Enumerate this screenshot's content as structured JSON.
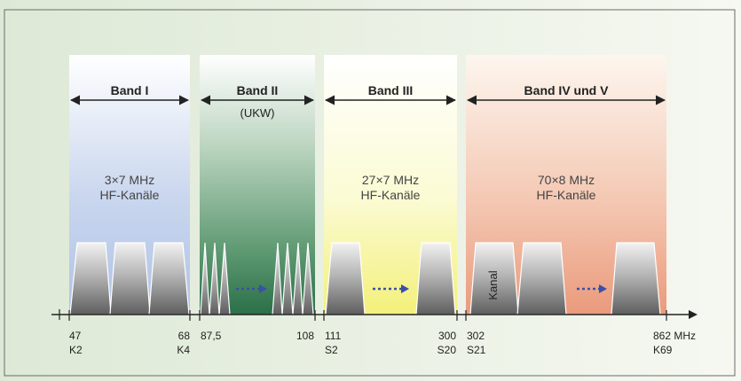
{
  "bands": [
    {
      "label": "Band I",
      "sublabel": "",
      "info_line1": "3×7 MHz",
      "info_line2": "HF-Kanäle",
      "top_color": "#b9cbe6"
    },
    {
      "label": "Band II",
      "sublabel": "(UKW)",
      "info_line1": "",
      "info_line2": "",
      "top_color": "#2f7a52"
    },
    {
      "label": "Band III",
      "sublabel": "",
      "info_line1": "27×7 MHz",
      "info_line2": "HF-Kanäle",
      "top_color": "#fbfbe8"
    },
    {
      "label": "Band IV und V",
      "sublabel": "",
      "info_line1": "70×8 MHz",
      "info_line2": "HF-Kanäle",
      "top_color": "#f4d9c8"
    }
  ],
  "channel_label": "Kanal",
  "axis_labels": [
    {
      "freq": "47",
      "ch": "K2"
    },
    {
      "freq": "68",
      "ch": "K4"
    },
    {
      "freq": "87,5",
      "ch": ""
    },
    {
      "freq": "108",
      "ch": ""
    },
    {
      "freq": "111",
      "ch": "S2"
    },
    {
      "freq": "300",
      "ch": "S20"
    },
    {
      "freq": "302",
      "ch": "S21"
    },
    {
      "freq": "862 MHz",
      "ch": "K69"
    }
  ],
  "colors": {
    "page_gradient_left": "#dde9d6",
    "page_gradient_right": "#f6f8f1",
    "frame": "#555555",
    "arrow": "#3a4fa8",
    "text": "#222222"
  }
}
